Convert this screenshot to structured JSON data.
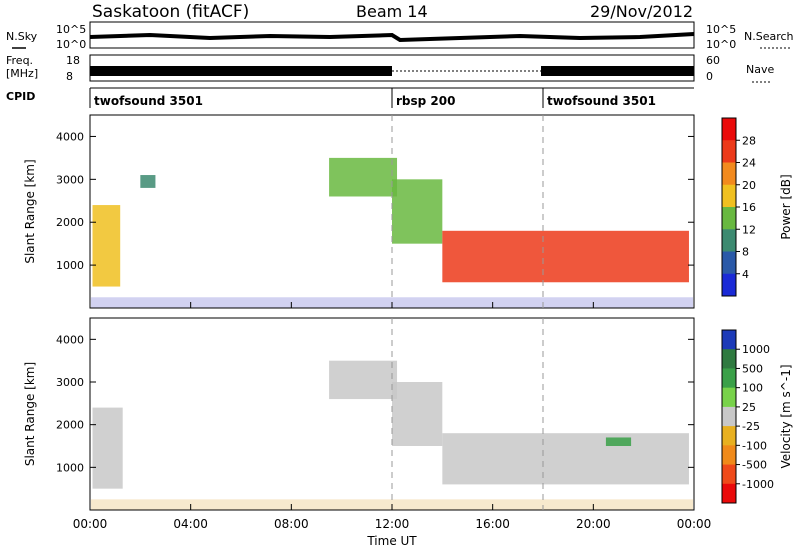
{
  "header": {
    "station": "Saskatoon (fitACF)",
    "beam": "Beam 14",
    "date": "29/Nov/2012"
  },
  "strips": {
    "nsky_label": "N.Sky",
    "nsky_ticks": [
      "10^5",
      "10^0"
    ],
    "nsearch_label": "N.Search",
    "nsearch_ticks": [
      "10^5",
      "10^0"
    ],
    "freq_label_1": "Freq.",
    "freq_label_2": "[MHz]",
    "freq_ticks": [
      "18",
      "8"
    ],
    "nave_label": "Nave",
    "nave_ticks": [
      "60",
      "0"
    ],
    "cpid_label": "CPID",
    "modes": [
      {
        "name": "twofsound 3501",
        "start_hour": 0,
        "end_hour": 12
      },
      {
        "name": "rbsp 200",
        "start_hour": 12,
        "end_hour": 18
      },
      {
        "name": "twofsound 3501",
        "start_hour": 18,
        "end_hour": 24
      }
    ]
  },
  "chart_data": [
    {
      "type": "heatmap",
      "panel": "Power",
      "ylabel": "Slant Range [km]",
      "xlabel": "",
      "ylim": [
        0,
        4500
      ],
      "xlim": [
        0,
        24
      ],
      "yticks": [
        1000,
        2000,
        3000,
        4000
      ],
      "colorbar_label": "Power [dB]",
      "colorbar_ticks": [
        "4",
        "8",
        "12",
        "16",
        "20",
        "24",
        "28"
      ],
      "colorbar_colors": [
        "#1a2ad6",
        "#2a59a8",
        "#3c8a70",
        "#68b840",
        "#f0c020",
        "#f28a1e",
        "#ec3a1a",
        "#ea0a0a"
      ],
      "features": [
        {
          "hour_start": 0.1,
          "hour_end": 1.2,
          "range_min": 500,
          "range_max": 2400,
          "value_db": 18
        },
        {
          "hour_start": 2.0,
          "hour_end": 2.6,
          "range_min": 2800,
          "range_max": 3100,
          "value_db": 8
        },
        {
          "hour_start": 9.5,
          "hour_end": 12.2,
          "range_min": 2600,
          "range_max": 3500,
          "value_db": 14
        },
        {
          "hour_start": 12.0,
          "hour_end": 14.0,
          "range_min": 1500,
          "range_max": 3000,
          "value_db": 12
        },
        {
          "hour_start": 14.0,
          "hour_end": 23.8,
          "range_min": 600,
          "range_max": 1800,
          "value_db": 26
        }
      ]
    },
    {
      "type": "heatmap",
      "panel": "Velocity",
      "ylabel": "Slant Range [km]",
      "xlabel": "Time UT",
      "ylim": [
        0,
        4500
      ],
      "xlim": [
        0,
        24
      ],
      "yticks": [
        1000,
        2000,
        3000,
        4000
      ],
      "xticks": [
        "00:00",
        "04:00",
        "08:00",
        "12:00",
        "16:00",
        "20:00",
        "00:00"
      ],
      "colorbar_label": "Velocity [m s^-1]",
      "colorbar_ticks": [
        "1000",
        "500",
        "100",
        "25",
        "-25",
        "-100",
        "-500",
        "-1000"
      ],
      "colorbar_colors": [
        "#1c3ab8",
        "#2f7a40",
        "#3aa048",
        "#78d24a",
        "#c8c8c8",
        "#e8b020",
        "#f08a1a",
        "#ef4a1a",
        "#ea0a0a"
      ],
      "features": [
        {
          "hour_start": 0.1,
          "hour_end": 1.3,
          "range_min": 500,
          "range_max": 2400,
          "value_ms": 0
        },
        {
          "hour_start": 9.5,
          "hour_end": 12.2,
          "range_min": 2600,
          "range_max": 3500,
          "value_ms": 0
        },
        {
          "hour_start": 12.0,
          "hour_end": 14.0,
          "range_min": 1500,
          "range_max": 3000,
          "value_ms": 0
        },
        {
          "hour_start": 14.0,
          "hour_end": 23.8,
          "range_min": 600,
          "range_max": 1800,
          "value_ms": 0
        },
        {
          "hour_start": 20.5,
          "hour_end": 21.5,
          "range_min": 1500,
          "range_max": 1700,
          "value_ms": 100
        }
      ]
    }
  ]
}
